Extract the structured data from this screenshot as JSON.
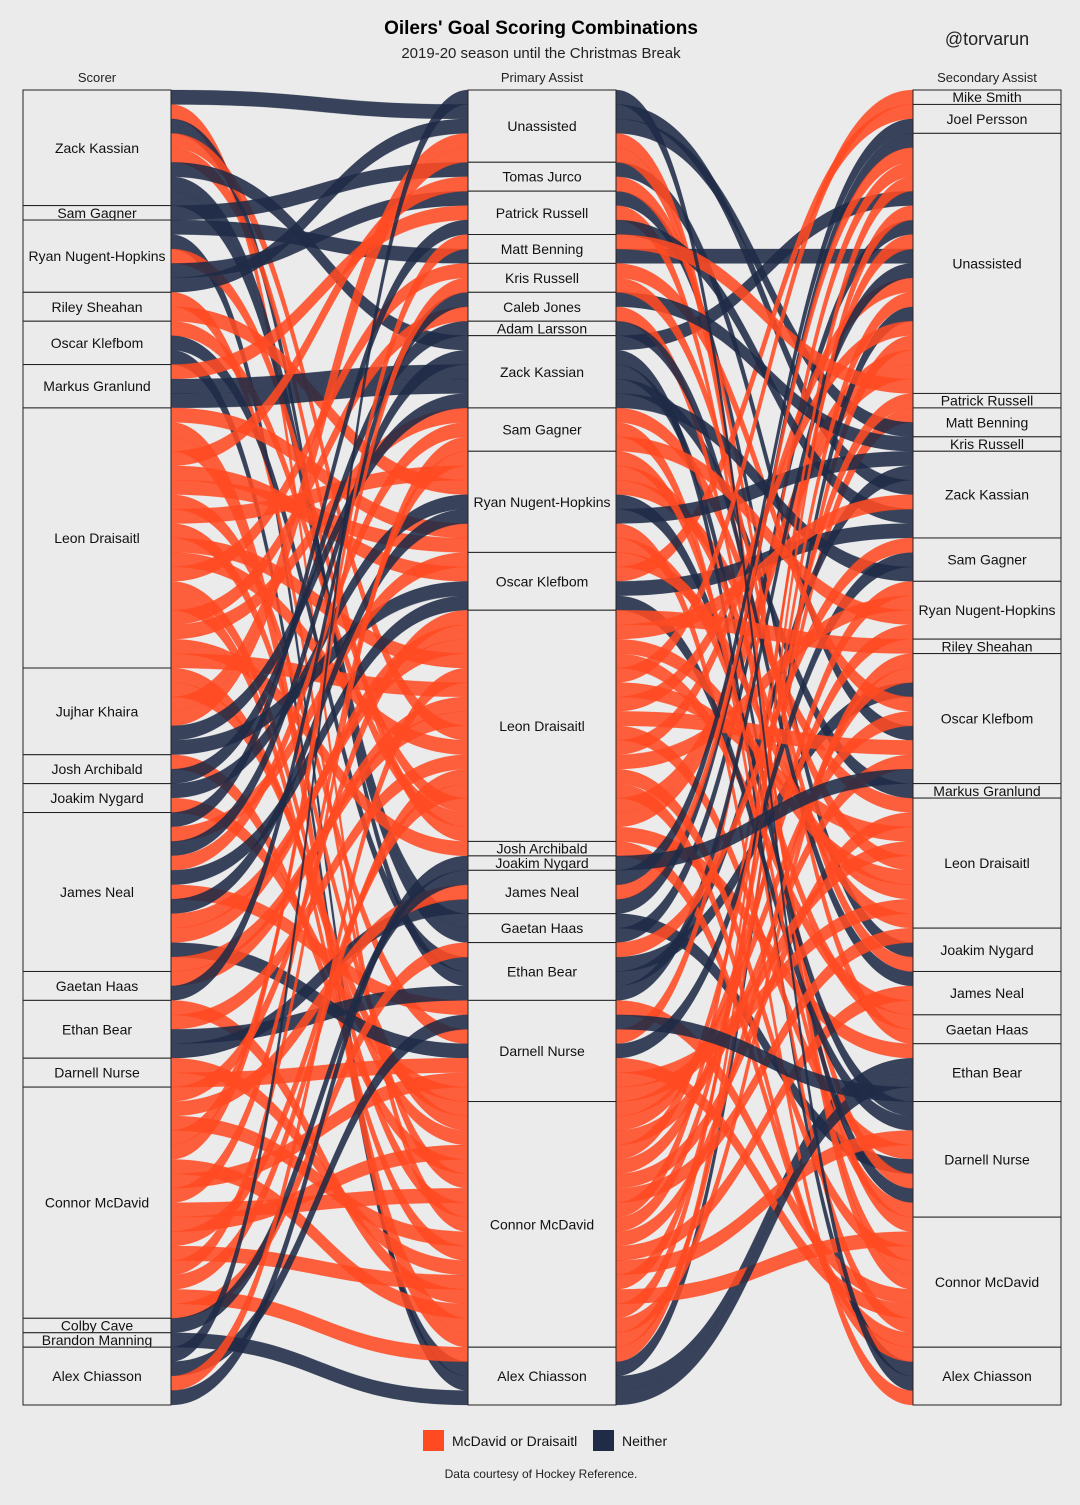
{
  "header": {
    "title": "Oilers' Goal Scoring Combinations",
    "subtitle": "2019-20 season until the Christmas Break",
    "handle": "@torvarun"
  },
  "footer": {
    "credit": "Data courtesy of Hockey Reference."
  },
  "chart_data": {
    "type": "alluvial",
    "unit": "goals",
    "colors": {
      "McDavid or Draisaitl": "#ff4a22",
      "Neither": "#1f2b47"
    },
    "axes": [
      {
        "name": "Scorer",
        "strata": [
          {
            "label": "Zack Kassian",
            "goals": 8
          },
          {
            "label": "Sam Gagner",
            "goals": 1
          },
          {
            "label": "Ryan Nugent-Hopkins",
            "goals": 5
          },
          {
            "label": "Riley Sheahan",
            "goals": 2
          },
          {
            "label": "Oscar Klefbom",
            "goals": 3
          },
          {
            "label": "Markus Granlund",
            "goals": 3
          },
          {
            "label": "Leon Draisaitl",
            "goals": 18
          },
          {
            "label": "Jujhar Khaira",
            "goals": 6
          },
          {
            "label": "Josh Archibald",
            "goals": 2
          },
          {
            "label": "Joakim Nygard",
            "goals": 2
          },
          {
            "label": "James Neal",
            "goals": 11
          },
          {
            "label": "Gaetan Haas",
            "goals": 2
          },
          {
            "label": "Ethan Bear",
            "goals": 4
          },
          {
            "label": "Darnell Nurse",
            "goals": 2
          },
          {
            "label": "Connor McDavid",
            "goals": 16
          },
          {
            "label": "Colby Cave",
            "goals": 1
          },
          {
            "label": "Brandon Manning",
            "goals": 1
          },
          {
            "label": "Alex Chiasson",
            "goals": 4
          }
        ]
      },
      {
        "name": "Primary Assist",
        "strata": [
          {
            "label": "Unassisted",
            "goals": 5
          },
          {
            "label": "Tomas Jurco",
            "goals": 2
          },
          {
            "label": "Patrick Russell",
            "goals": 3
          },
          {
            "label": "Matt Benning",
            "goals": 2
          },
          {
            "label": "Kris Russell",
            "goals": 2
          },
          {
            "label": "Caleb Jones",
            "goals": 2
          },
          {
            "label": "Adam Larsson",
            "goals": 1
          },
          {
            "label": "Zack Kassian",
            "goals": 5
          },
          {
            "label": "Sam Gagner",
            "goals": 3
          },
          {
            "label": "Ryan Nugent-Hopkins",
            "goals": 7
          },
          {
            "label": "Oscar Klefbom",
            "goals": 4
          },
          {
            "label": "Leon Draisaitl",
            "goals": 16
          },
          {
            "label": "Josh Archibald",
            "goals": 1
          },
          {
            "label": "Joakim Nygard",
            "goals": 1
          },
          {
            "label": "James Neal",
            "goals": 3
          },
          {
            "label": "Gaetan Haas",
            "goals": 2
          },
          {
            "label": "Ethan Bear",
            "goals": 4
          },
          {
            "label": "Darnell Nurse",
            "goals": 7
          },
          {
            "label": "Connor McDavid",
            "goals": 17
          },
          {
            "label": "Alex Chiasson",
            "goals": 4
          }
        ]
      },
      {
        "name": "Secondary Assist",
        "strata": [
          {
            "label": "Mike Smith",
            "goals": 1
          },
          {
            "label": "Joel Persson",
            "goals": 2
          },
          {
            "label": "Unassisted",
            "goals": 18
          },
          {
            "label": "Patrick Russell",
            "goals": 1
          },
          {
            "label": "Matt Benning",
            "goals": 2
          },
          {
            "label": "Kris Russell",
            "goals": 1
          },
          {
            "label": "Zack Kassian",
            "goals": 6
          },
          {
            "label": "Sam Gagner",
            "goals": 3
          },
          {
            "label": "Ryan Nugent-Hopkins",
            "goals": 4
          },
          {
            "label": "Riley Sheahan",
            "goals": 1
          },
          {
            "label": "Oscar Klefbom",
            "goals": 9
          },
          {
            "label": "Markus Granlund",
            "goals": 1
          },
          {
            "label": "Leon Draisaitl",
            "goals": 9
          },
          {
            "label": "Joakim Nygard",
            "goals": 3
          },
          {
            "label": "James Neal",
            "goals": 3
          },
          {
            "label": "Gaetan Haas",
            "goals": 2
          },
          {
            "label": "Ethan Bear",
            "goals": 4
          },
          {
            "label": "Darnell Nurse",
            "goals": 8
          },
          {
            "label": "Connor McDavid",
            "goals": 9
          },
          {
            "label": "Alex Chiasson",
            "goals": 4
          }
        ]
      }
    ],
    "legend": {
      "position": "bottom",
      "entries": [
        "McDavid or Draisaitl",
        "Neither"
      ]
    }
  }
}
